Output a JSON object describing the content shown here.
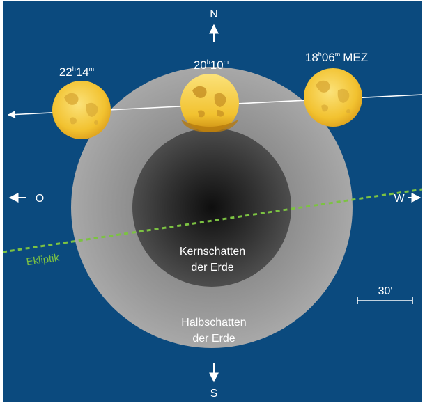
{
  "colors": {
    "background": "#0b4a7e",
    "frame": "#ffffff",
    "penumbra": "#9c9c9c",
    "umbra_center": "#111111",
    "umbra_edge": "#4a4a4a",
    "moon": "#f2c230",
    "ecliptic": "#7cc242",
    "text": "#ffffff"
  },
  "compass": {
    "north": "N",
    "south": "S",
    "east": "O",
    "west": "W"
  },
  "shadow": {
    "umbra_line1": "Kernschatten",
    "umbra_line2": "der Erde",
    "penumbra_line1": "Halbschatten",
    "penumbra_line2": "der Erde"
  },
  "ecliptic_label": "Ekliptik",
  "scale_label": "30'",
  "moon_positions": [
    {
      "hour": "22",
      "minute": "14",
      "suffix": ""
    },
    {
      "hour": "20",
      "minute": "10",
      "suffix": ""
    },
    {
      "hour": "18",
      "minute": "06",
      "suffix": "MEZ"
    }
  ],
  "unit_h": "h",
  "unit_m": "m"
}
